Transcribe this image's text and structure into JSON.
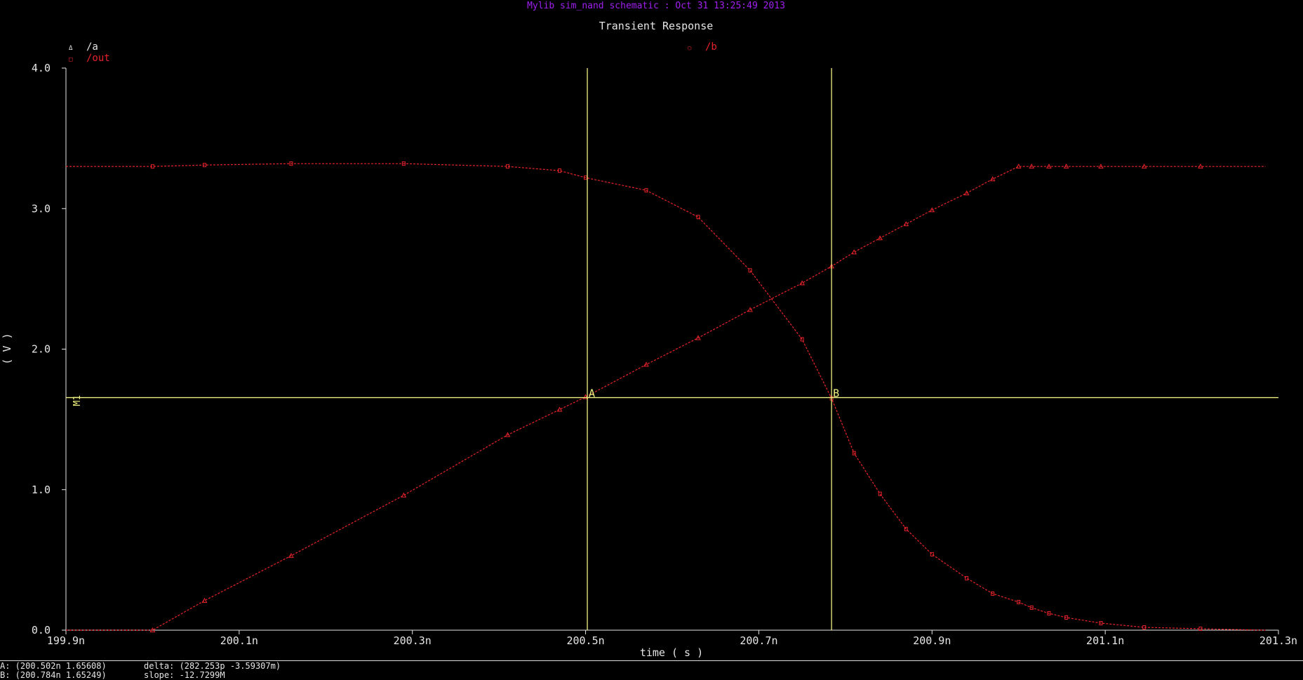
{
  "window": {
    "header": "Mylib sim_nand schematic : Oct 31 13:25:49 2013"
  },
  "colors": {
    "background": "#000000",
    "header": "#a020f0",
    "axes": "#e6e6e6",
    "trace": "#e8232a",
    "marker": "#f0f080"
  },
  "chart_data": {
    "type": "line",
    "title": "Transient Response",
    "xlabel": "time ( s )",
    "ylabel": "( V )",
    "xlim": [
      199.9,
      201.3
    ],
    "ylim": [
      0.0,
      4.0
    ],
    "x_unit": "ns",
    "x_ticks": [
      "199.9n",
      "200.1n",
      "200.3n",
      "200.5n",
      "200.7n",
      "200.9n",
      "201.1n",
      "201.3n"
    ],
    "y_ticks": [
      "0.0",
      "1.0",
      "2.0",
      "3.0",
      "4.0"
    ],
    "series": [
      {
        "name": "/a",
        "legend": "/a",
        "symbol": "Δ",
        "x": [
          199.9,
          200.0,
          200.06,
          200.16,
          200.29,
          200.41,
          200.47,
          200.5,
          200.57,
          200.63,
          200.69,
          200.75,
          200.784,
          200.81,
          200.84,
          200.87,
          200.9,
          200.94,
          200.97,
          201.0,
          201.015,
          201.035,
          201.055,
          201.095,
          201.145,
          201.21,
          201.285
        ],
        "y": [
          0.0,
          0.0,
          0.21,
          0.53,
          0.96,
          1.39,
          1.57,
          1.66,
          1.89,
          2.08,
          2.28,
          2.47,
          2.59,
          2.69,
          2.79,
          2.89,
          2.99,
          3.11,
          3.21,
          3.3,
          3.3,
          3.3,
          3.3,
          3.3,
          3.3,
          3.3,
          3.3
        ]
      },
      {
        "name": "/out",
        "legend": "/out",
        "symbol": "□",
        "x": [
          199.9,
          200.0,
          200.06,
          200.16,
          200.29,
          200.41,
          200.47,
          200.5,
          200.57,
          200.63,
          200.69,
          200.75,
          200.784,
          200.81,
          200.84,
          200.87,
          200.9,
          200.94,
          200.97,
          201.0,
          201.015,
          201.035,
          201.055,
          201.095,
          201.145,
          201.21,
          201.285
        ],
        "y": [
          3.3,
          3.3,
          3.31,
          3.32,
          3.32,
          3.3,
          3.27,
          3.22,
          3.13,
          2.94,
          2.56,
          2.07,
          1.65,
          1.26,
          0.97,
          0.72,
          0.54,
          0.37,
          0.26,
          0.2,
          0.16,
          0.12,
          0.09,
          0.05,
          0.02,
          0.01,
          0.0
        ]
      }
    ],
    "extra_legend": [
      {
        "symbol": "○",
        "name": "/b"
      }
    ],
    "markers": {
      "horizontal": {
        "label": "M1",
        "y": 1.655
      },
      "vertical": [
        {
          "label": "A",
          "x": 200.502
        },
        {
          "label": "B",
          "x": 200.784
        }
      ]
    }
  },
  "status": {
    "line1_left": "A: (200.502n 1.65608)",
    "line1_right": "delta: (282.253p -3.59307m)",
    "line2_left": "B: (200.784n 1.65249)",
    "line2_right": "slope: -12.7299M"
  }
}
